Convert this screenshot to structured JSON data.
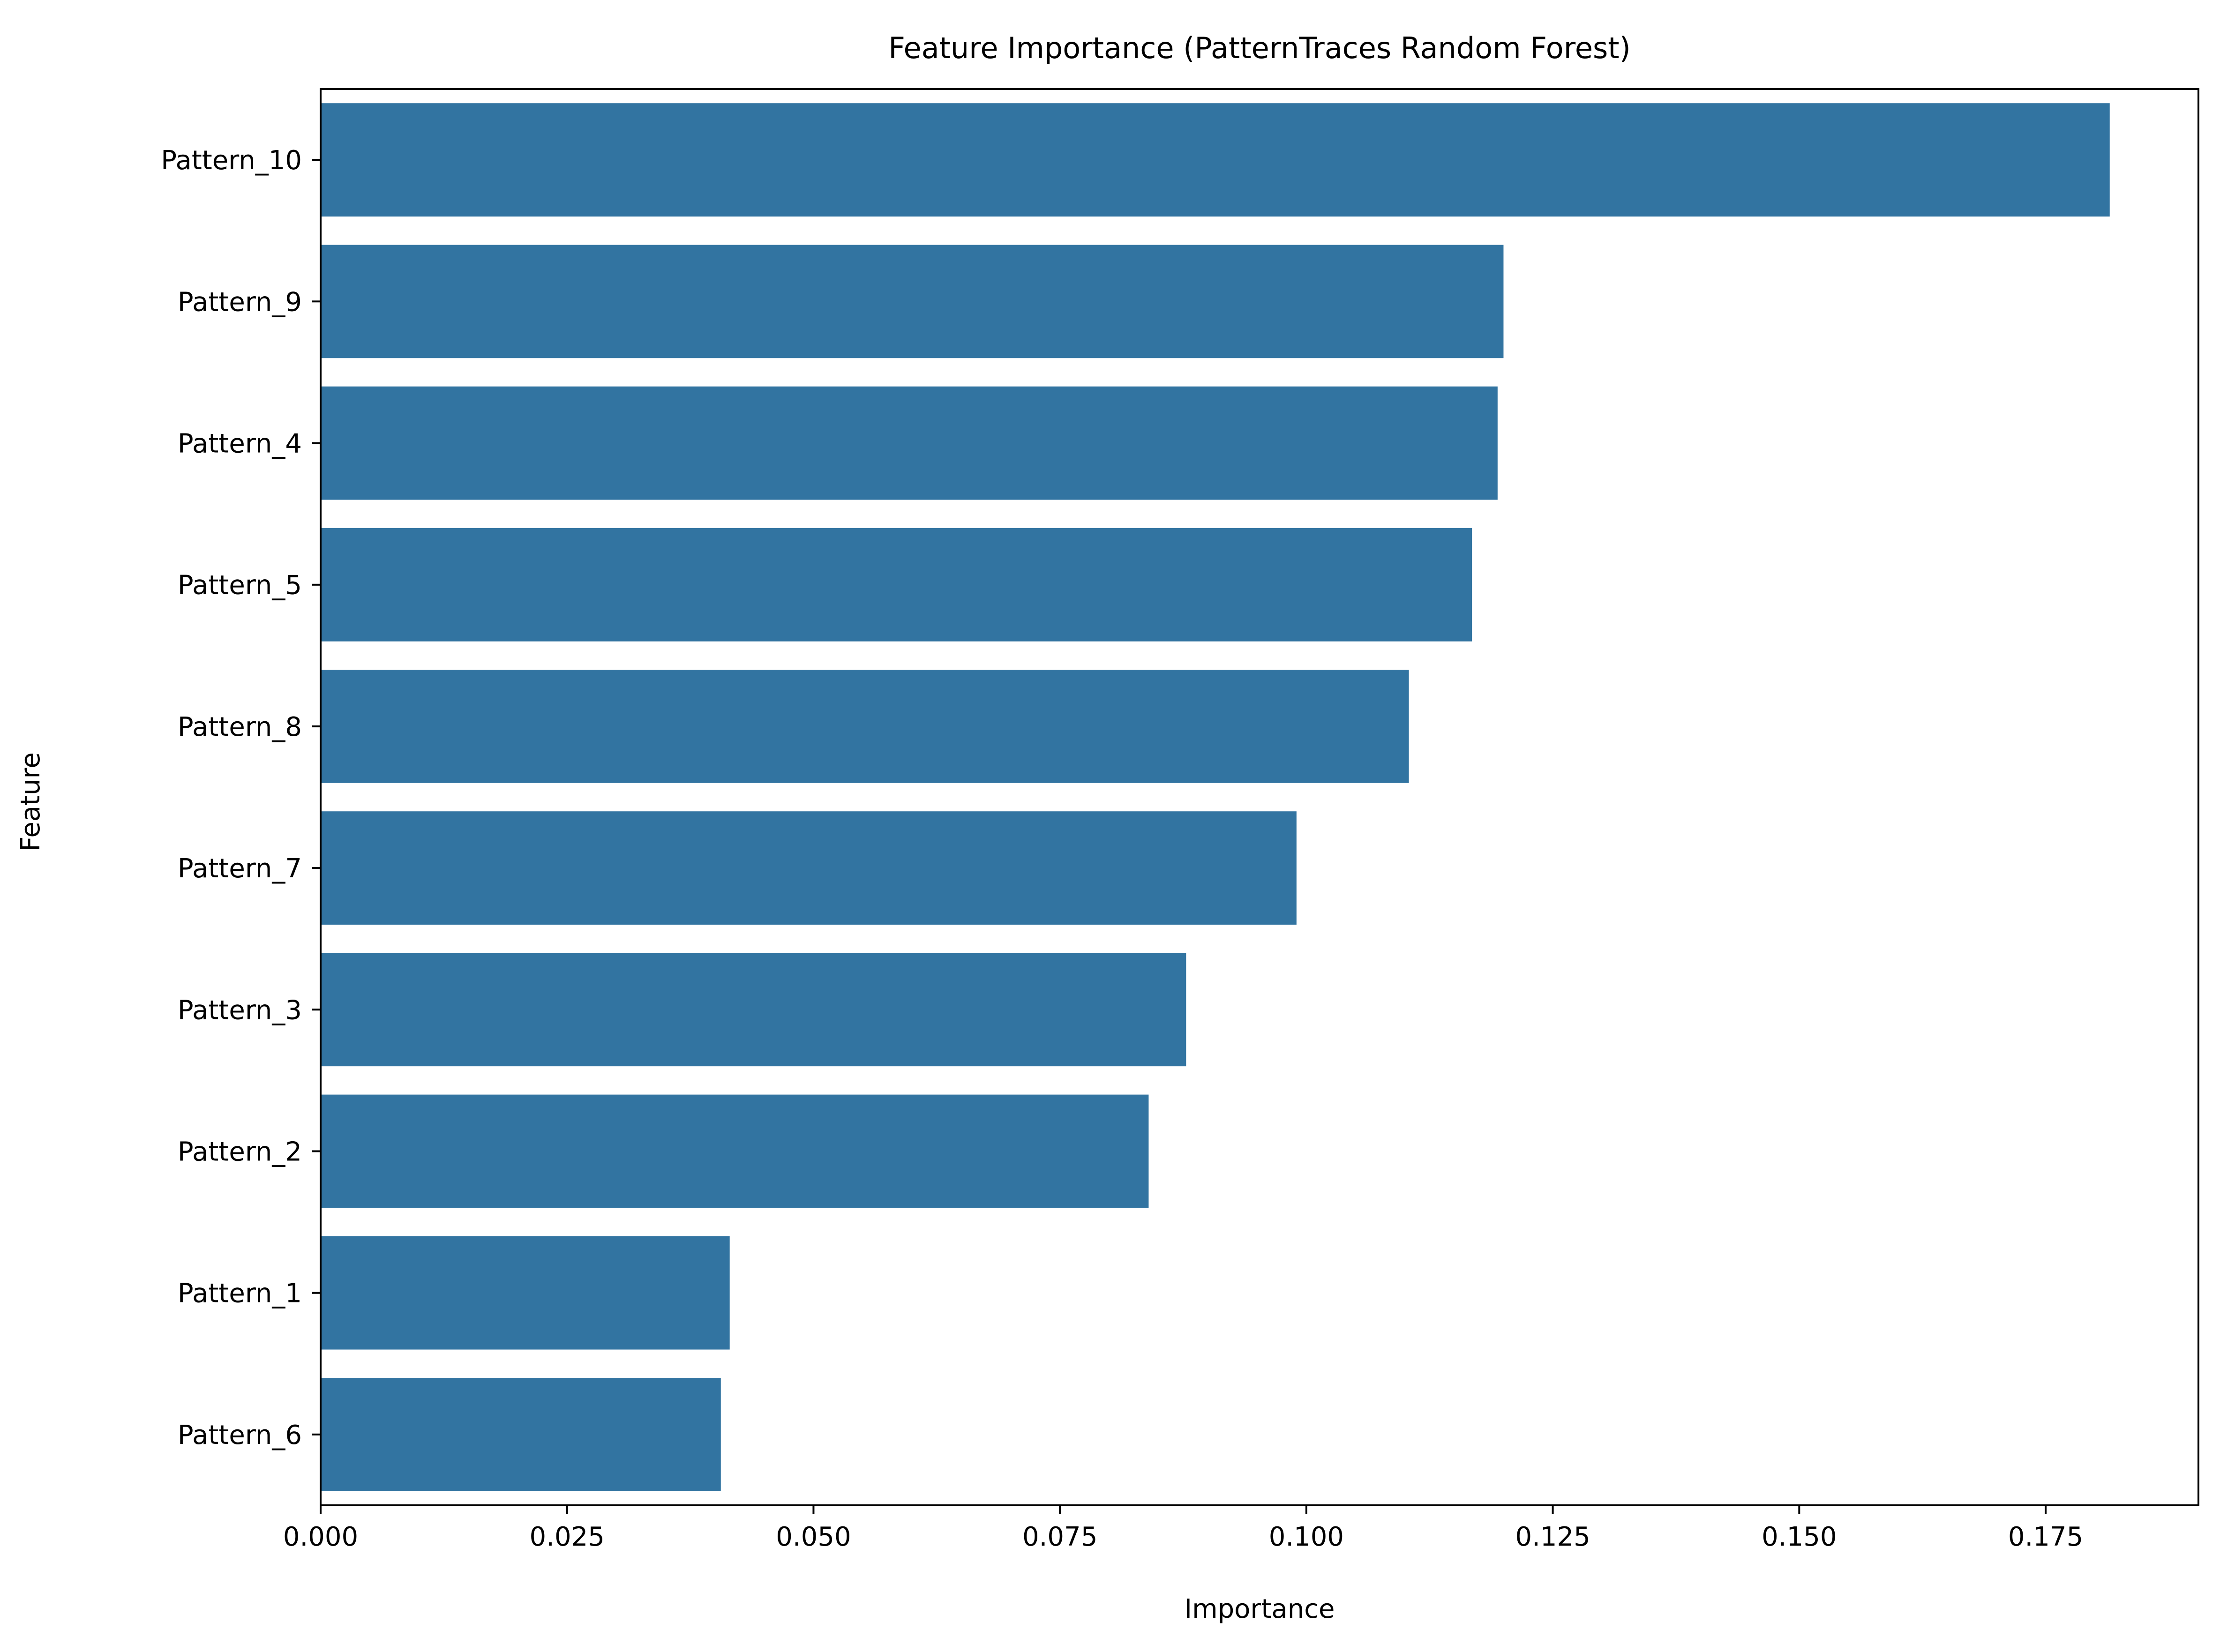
{
  "chart_data": {
    "type": "bar",
    "orientation": "horizontal",
    "title": "Feature Importance (PatternTraces Random Forest)",
    "xlabel": "Importance",
    "ylabel": "Feature",
    "categories": [
      "Pattern_10",
      "Pattern_9",
      "Pattern_4",
      "Pattern_5",
      "Pattern_8",
      "Pattern_7",
      "Pattern_3",
      "Pattern_2",
      "Pattern_1",
      "Pattern_6"
    ],
    "values": [
      0.1815,
      0.12,
      0.1194,
      0.1168,
      0.1104,
      0.099,
      0.0878,
      0.084,
      0.0415,
      0.0406
    ],
    "xlim": [
      0,
      0.1905
    ],
    "xticks": [
      "0.000",
      "0.025",
      "0.050",
      "0.075",
      "0.100",
      "0.125",
      "0.150",
      "0.175"
    ],
    "bar_color": "#3274a1",
    "grid": false,
    "legend": "none"
  }
}
